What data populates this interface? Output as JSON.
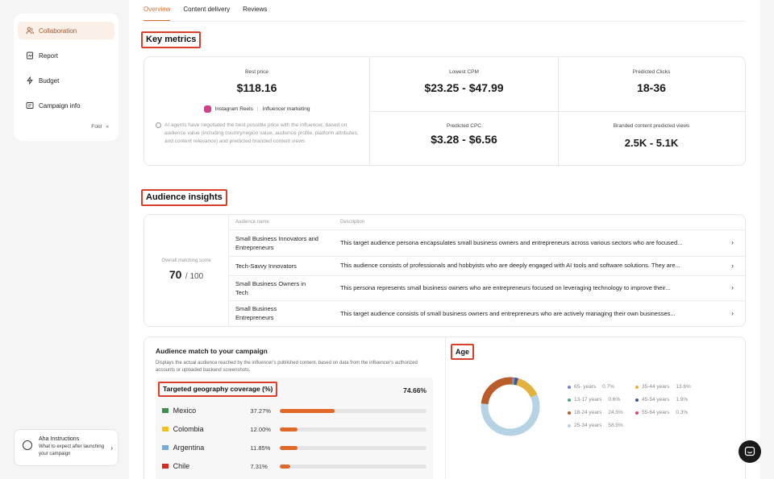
{
  "sidebar": {
    "items": [
      {
        "label": "Collaboration",
        "icon": "users-icon"
      },
      {
        "label": "Report",
        "icon": "report-icon"
      },
      {
        "label": "Budget",
        "icon": "budget-icon"
      },
      {
        "label": "Campaign info",
        "icon": "info-icon"
      }
    ],
    "fold_label": "Fold",
    "fold_chevron": "«"
  },
  "aha": {
    "title": "Aha Instructions",
    "subtitle": "What to expect after launching your campaign",
    "chevron": "›"
  },
  "tabs": [
    "Overview",
    "Content delivery",
    "Reviews"
  ],
  "key_metrics": {
    "title": "Key metrics",
    "best_price_label": "Best price",
    "best_price_value": "$118.16",
    "platform": "Instagram Reels",
    "platform_sep": "|",
    "category": "Influencer marketing",
    "note": "AI agents have negotiated the best possible price with the influencer, based on audience value (including country/region value, audience profile, platform attributes, and content relevance) and predicted branded content views",
    "cpm_label": "Lowest CPM",
    "cpm_value": "$23.25 - $47.99",
    "clicks_label": "Predicted Clicks",
    "clicks_value": "18-36",
    "cpc_label": "Predicted CPC",
    "cpc_value": "$3.28 - $6.56",
    "views_label": "Branded content predicted views",
    "views_value": "2.5K - 5.1K"
  },
  "audience_insights": {
    "title": "Audience insights",
    "score_label": "Overall matching score",
    "score_value": "70",
    "score_total": "/ 100",
    "col_name": "Audience name",
    "col_desc": "Description",
    "chevron": "›",
    "rows": [
      {
        "name": "Small Business Innovators and Entrepreneurs",
        "desc": "This target audience persona encapsulates small business owners and entrepreneurs across various sectors who are focused..."
      },
      {
        "name": "Tech-Savvy Innovators",
        "desc": "This audience consists of professionals and hobbyists who are deeply engaged with AI tools and software solutions. They are..."
      },
      {
        "name": "Small Business Owners in Tech",
        "desc": "This persona represents small business owners who are entrepreneurs focused on leveraging technology to improve their..."
      },
      {
        "name": "Small Business Entrepreneurs",
        "desc": "This target audience consists of small business owners and entrepreneurs who are actively managing their own businesses..."
      }
    ]
  },
  "audience_match": {
    "title": "Audience match to your campaign",
    "desc": "Displays the actual audience reached by the influencer's published content, based on data from the influencer's authorized accounts or uploaded backend screenshots.",
    "geo_title": "Targeted geography coverage (%)",
    "geo_total": "74.66%",
    "countries": [
      {
        "name": "Mexico",
        "pct": "37.27%",
        "value": 37.27,
        "flag_color": "#3a8f4a"
      },
      {
        "name": "Colombia",
        "pct": "12.00%",
        "value": 12.0,
        "flag_color": "#f2c21b"
      },
      {
        "name": "Argentina",
        "pct": "11.85%",
        "value": 11.85,
        "flag_color": "#74acdf"
      },
      {
        "name": "Chile",
        "pct": "7.31%",
        "value": 7.31,
        "flag_color": "#d52b1e"
      }
    ]
  },
  "age": {
    "title": "Age",
    "chart_data": {
      "type": "pie",
      "categories": [
        "25-34 years",
        "35-44 years",
        "18-24 years",
        "45-54 years",
        "65- years",
        "13-17 years",
        "55-64 years"
      ],
      "values": [
        58.5,
        13.6,
        24.5,
        1.9,
        0.7,
        0.6,
        0.3
      ],
      "colors": [
        "#b6d3e6",
        "#e3b23c",
        "#b85c2a",
        "#3e5a8a",
        "#7b7fd8",
        "#4fa48a",
        "#e0457a"
      ]
    },
    "legend": [
      {
        "label": "65- years",
        "pct": "0.7%",
        "color": "#7b7fd8"
      },
      {
        "label": "35-44 years",
        "pct": "13.6%",
        "color": "#e3b23c"
      },
      {
        "label": "13-17 years",
        "pct": "0.6%",
        "color": "#4fa48a"
      },
      {
        "label": "45-54 years",
        "pct": "1.9%",
        "color": "#3e5a8a"
      },
      {
        "label": "18-24 years",
        "pct": "24.5%",
        "color": "#b85c2a"
      },
      {
        "label": "55-64 years",
        "pct": "0.3%",
        "color": "#e0457a"
      },
      {
        "label": "25-34 years",
        "pct": "58.5%",
        "color": "#b6d3e6"
      }
    ]
  }
}
